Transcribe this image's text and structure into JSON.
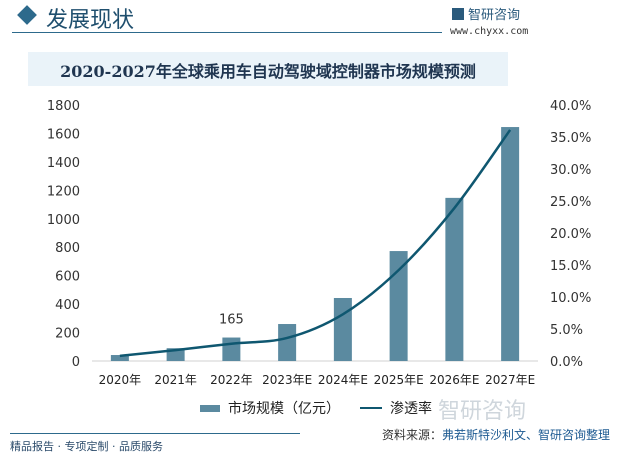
{
  "header": {
    "title": "发展现状",
    "logo": "智研咨询",
    "url": "www.chyxx.com"
  },
  "chart_data": {
    "type": "bar+line",
    "title": "2020-2027年全球乘用车自动驾驶域控制器市场规模预测",
    "categories": [
      "2020年",
      "2021年",
      "2022年",
      "2023年E",
      "2024年E",
      "2025年E",
      "2026年E",
      "2027年E"
    ],
    "series": [
      {
        "name": "市场规模（亿元）",
        "type": "bar",
        "axis": "left",
        "color": "#5b8aa0",
        "values": [
          42,
          90,
          165,
          260,
          443,
          773,
          1147,
          1645
        ]
      },
      {
        "name": "渗透率",
        "type": "line",
        "axis": "right",
        "color": "#0f5770",
        "values": [
          0.8,
          1.7,
          2.7,
          3.6,
          7.3,
          14.2,
          23.9,
          36.1
        ]
      }
    ],
    "data_labels": [
      {
        "category": "2022年",
        "text": "165"
      }
    ],
    "ylim_left": [
      0,
      1800
    ],
    "yticks_left": [
      "0",
      "200",
      "400",
      "600",
      "800",
      "1000",
      "1200",
      "1400",
      "1600",
      "1800"
    ],
    "ylim_right": [
      0,
      40
    ],
    "yticks_right": [
      "0.0%",
      "5.0%",
      "10.0%",
      "15.0%",
      "20.0%",
      "25.0%",
      "30.0%",
      "35.0%",
      "40.0%"
    ],
    "grid": false,
    "legend": "bottom"
  },
  "watermark": "智研咨询",
  "source": {
    "label": "资料来源：",
    "text": "弗若斯特沙利文、智研咨询整理"
  },
  "footer": "精品报告 · 专项定制 · 品质服务"
}
